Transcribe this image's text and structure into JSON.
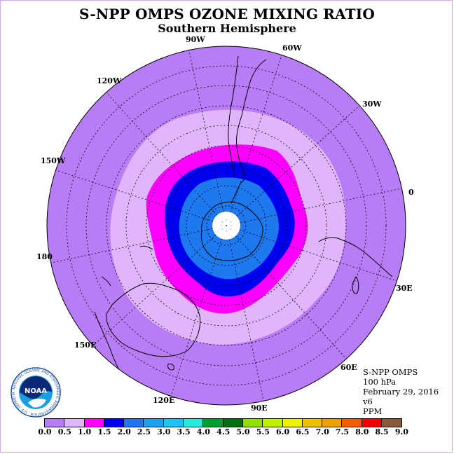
{
  "title": "S-NPP OMPS OZONE MIXING RATIO",
  "subtitle": "Southern Hemisphere",
  "longitude_labels": {
    "lon_90w": "90W",
    "lon_60w": "60W",
    "lon_30w": "30W",
    "lon_0": "0",
    "lon_30e": "30E",
    "lon_60e": "60E",
    "lon_90e": "90E",
    "lon_120e": "120E",
    "lon_150e": "150E",
    "lon_180": "180",
    "lon_150w": "150W",
    "lon_120w": "120W"
  },
  "info": {
    "instrument": "S-NPP OMPS",
    "level": "100 hPa",
    "date": "February 29, 2016",
    "version": "v6",
    "units": "PPM"
  },
  "logo": {
    "text": "NOAA",
    "ring_text": "NATIONAL OCEANIC AND ATMOSPHERIC ADMINISTRATION · U.S. DEPARTMENT OF COMMERCE"
  },
  "colorbar": {
    "ticks": [
      "0.0",
      "0.5",
      "1.0",
      "1.5",
      "2.0",
      "2.5",
      "3.0",
      "3.5",
      "4.0",
      "4.5",
      "5.0",
      "5.5",
      "6.0",
      "6.5",
      "7.0",
      "7.5",
      "8.0",
      "8.5",
      "9.0"
    ],
    "colors": [
      "#b77cf6",
      "#e0b5fb",
      "#ff00ff",
      "#0000f0",
      "#1e78f0",
      "#1ea0f0",
      "#20c0f8",
      "#28e8e0",
      "#00a030",
      "#007010",
      "#90e000",
      "#c0f000",
      "#f0f000",
      "#f0c000",
      "#f0a000",
      "#f06000",
      "#f00000",
      "#8b5a3a"
    ]
  },
  "map_colors": {
    "ocean_bg": "#b77cf6",
    "level_0_5_1_0": "#e0b5fb",
    "level_1_0_1_5": "#ff00ff",
    "level_1_5_2_0": "#0000f0",
    "level_2_0_2_5": "#1e78f0",
    "no_data": "#ffffff"
  }
}
